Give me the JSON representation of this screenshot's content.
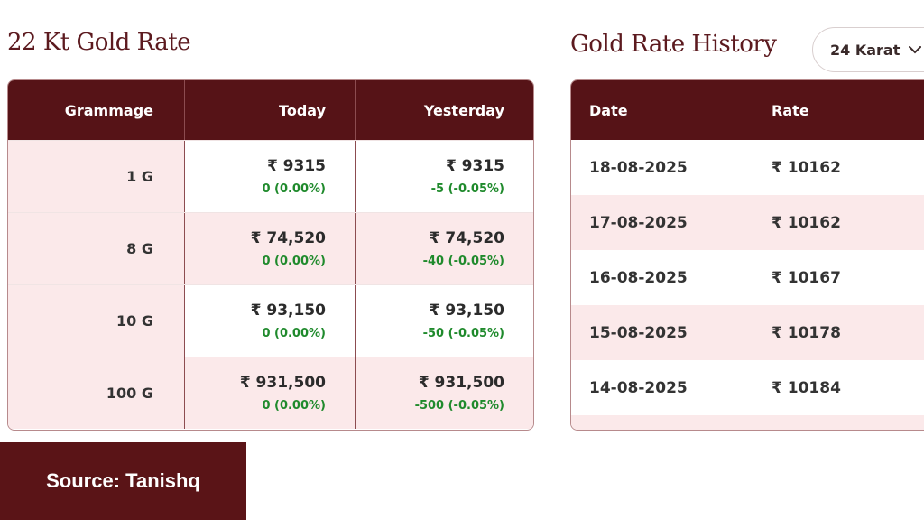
{
  "left": {
    "title": "22 Kt Gold Rate",
    "headers": [
      "Grammage",
      "Today",
      "Yesterday"
    ],
    "rows": [
      {
        "grammage": "1 G",
        "today_price": "₹ 9315",
        "today_change": "0 (0.00%)",
        "yesterday_price": "₹ 9315",
        "yesterday_change": "-5 (-0.05%)"
      },
      {
        "grammage": "8 G",
        "today_price": "₹ 74,520",
        "today_change": "0 (0.00%)",
        "yesterday_price": "₹ 74,520",
        "yesterday_change": "-40 (-0.05%)"
      },
      {
        "grammage": "10 G",
        "today_price": "₹ 93,150",
        "today_change": "0 (0.00%)",
        "yesterday_price": "₹ 93,150",
        "yesterday_change": "-50 (-0.05%)"
      },
      {
        "grammage": "100 G",
        "today_price": "₹ 931,500",
        "today_change": "0 (0.00%)",
        "yesterday_price": "₹ 931,500",
        "yesterday_change": "-500 (-0.05%)"
      }
    ]
  },
  "right": {
    "title": "Gold Rate History",
    "karat_select": {
      "value": "24 Karat",
      "icon": "chevron-down-icon"
    },
    "headers": [
      "Date",
      "Rate"
    ],
    "rows": [
      {
        "date": "18-08-2025",
        "rate": "₹ 10162"
      },
      {
        "date": "17-08-2025",
        "rate": "₹ 10162"
      },
      {
        "date": "16-08-2025",
        "rate": "₹ 10167"
      },
      {
        "date": "15-08-2025",
        "rate": "₹ 10178"
      },
      {
        "date": "14-08-2025",
        "rate": "₹ 10184"
      }
    ]
  },
  "source": "Source: Tanishq",
  "colors": {
    "header_bg": "#561317",
    "row_alt": "#fbe9ea",
    "change_green": "#1f8a2c",
    "title": "#5c1a1f"
  }
}
